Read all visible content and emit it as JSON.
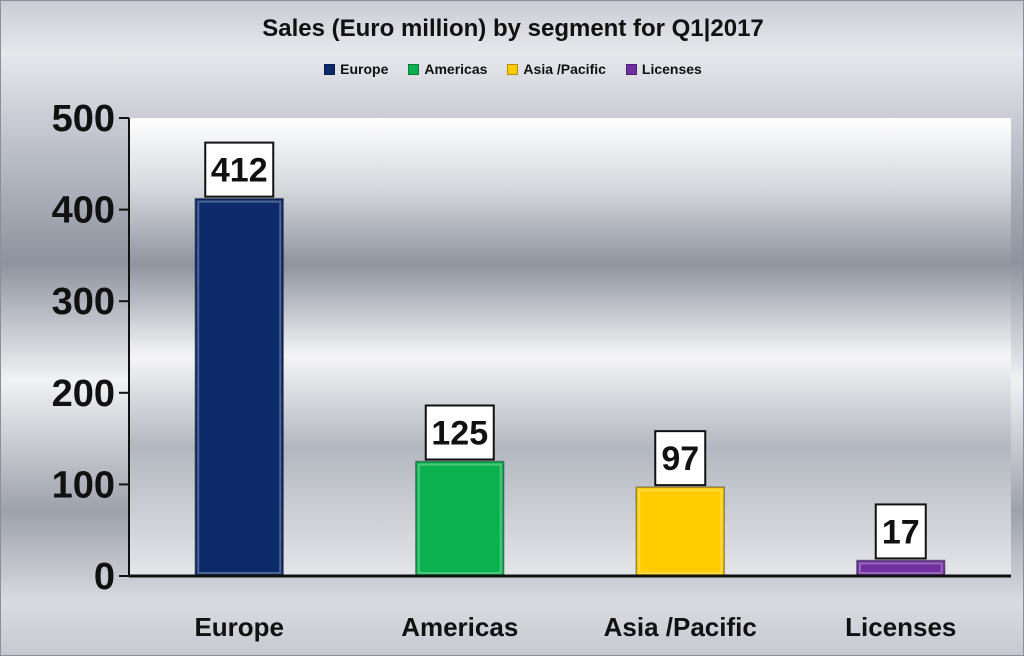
{
  "chart_data": {
    "type": "bar",
    "title": "Sales (Euro million) by segment for Q1|2017",
    "categories": [
      "Europe",
      "Americas",
      "Asia /Pacific",
      "Licenses"
    ],
    "values": [
      412,
      125,
      97,
      17
    ],
    "colors": [
      "#0d2a6b",
      "#0bb14f",
      "#ffcc00",
      "#7030a0"
    ],
    "legend": [
      "Europe",
      "Americas",
      "Asia /Pacific",
      "Licenses"
    ],
    "legend_position": "top",
    "ylim": [
      0,
      500
    ],
    "yticks": [
      "0",
      "100",
      "200",
      "300",
      "400",
      "500"
    ],
    "data_labels": [
      "412",
      "125",
      "97",
      "17"
    ],
    "xlabel": "",
    "ylabel": "",
    "grid": false
  }
}
